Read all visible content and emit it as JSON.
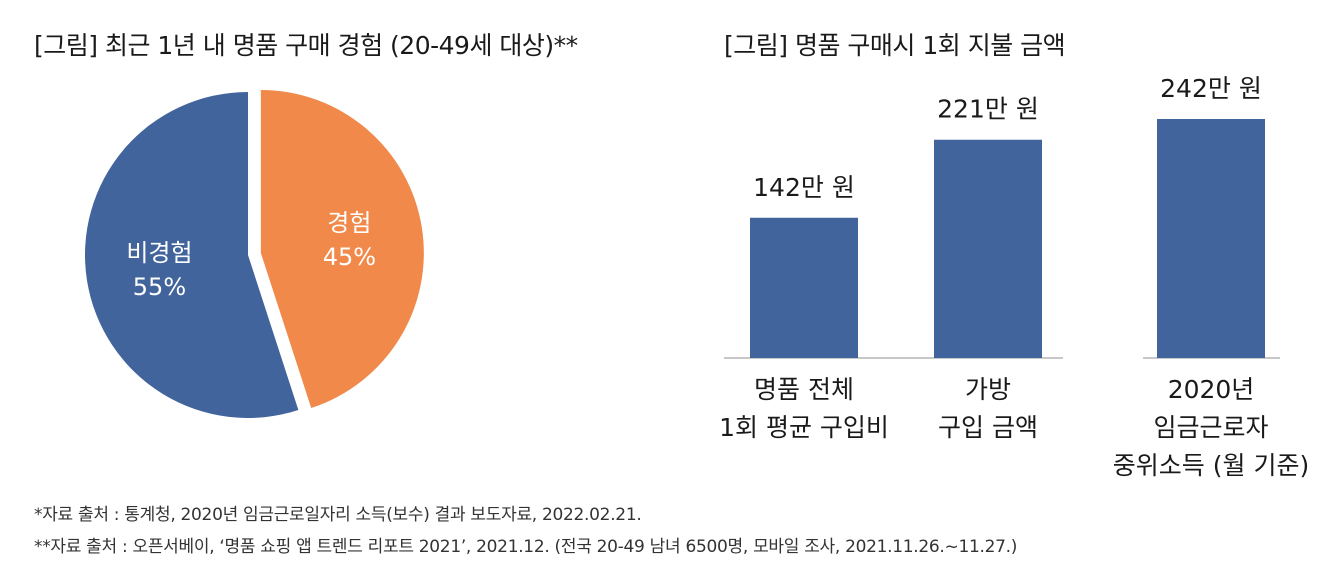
{
  "chart_data": [
    {
      "type": "pie",
      "title": "[그림] 최근 1년 내 명품 구매 경험 (20-49세 대상)**",
      "slices": [
        {
          "label": "경험",
          "value": 45,
          "value_label": "45%",
          "color": "#F0894A",
          "exploded": true
        },
        {
          "label": "비경험",
          "value": 55,
          "value_label": "55%",
          "color": "#42649C",
          "exploded": false
        }
      ]
    },
    {
      "type": "bar",
      "title": "[그림] 명품 구매시 1회 지불 금액",
      "unit": "만 원",
      "color": "#42649C",
      "bars": [
        {
          "category": [
            "명품 전체",
            "1회 평균 구입비"
          ],
          "value": 142,
          "value_label": "142만 원",
          "group": 0
        },
        {
          "category": [
            "가방",
            "구입 금액"
          ],
          "value": 221,
          "value_label": "221만 원",
          "group": 0
        },
        {
          "category": [
            "2020년",
            "임금근로자",
            "중위소득 (월 기준)"
          ],
          "value": 242,
          "value_label": "242만 원",
          "group": 1
        }
      ],
      "ylim": [
        0,
        242
      ]
    }
  ],
  "sources": [
    "*자료 출처 : 통계청, 2020년 임금근로일자리 소득(보수) 결과 보도자료, 2022.02.21.",
    "**자료 출처 : 오픈서베이, ‘명품 쇼핑 앱 트렌드 리포트 2021’, 2021.12. (전국 20-49 남녀 6500명, 모바일 조사, 2021.11.26.~11.27.)"
  ]
}
